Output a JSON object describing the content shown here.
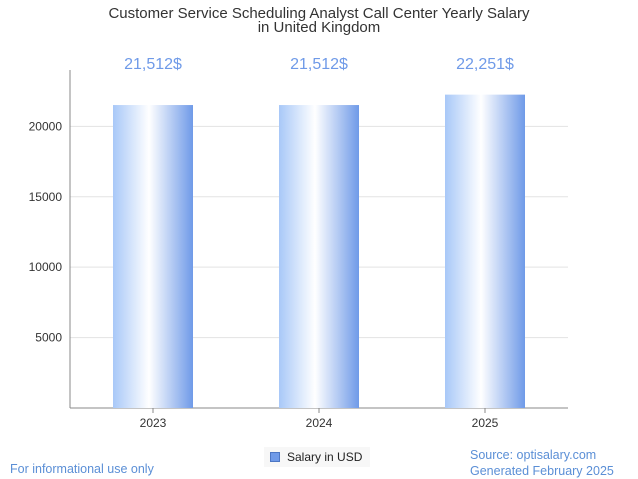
{
  "chart_data": {
    "type": "bar",
    "title_lines": [
      "Customer Service Scheduling Analyst Call Center Yearly Salary",
      "in United Kingdom"
    ],
    "categories": [
      "2023",
      "2024",
      "2025"
    ],
    "values": [
      21512,
      21512,
      22251
    ],
    "data_labels": [
      "21,512$",
      "21,512$",
      "22,251$"
    ],
    "series": [
      {
        "name": "Salary in USD",
        "values": [
          21512,
          21512,
          22251
        ]
      }
    ],
    "ylim": [
      0,
      24000
    ],
    "yticks": [
      5000,
      10000,
      15000,
      20000
    ],
    "xlabel": "",
    "ylabel": "",
    "grid": true,
    "legend_position": "bottom-center",
    "colors": {
      "bar_light": "#ffffff",
      "bar_mid": "#a8c8f8",
      "bar_dark": "#6f9ae8",
      "label": "#6f9ae8",
      "footer": "#5b8fd6"
    }
  },
  "footer": {
    "disclaimer": "For informational use only",
    "source": "Source: optisalary.com",
    "generated": "Generated February 2025"
  }
}
